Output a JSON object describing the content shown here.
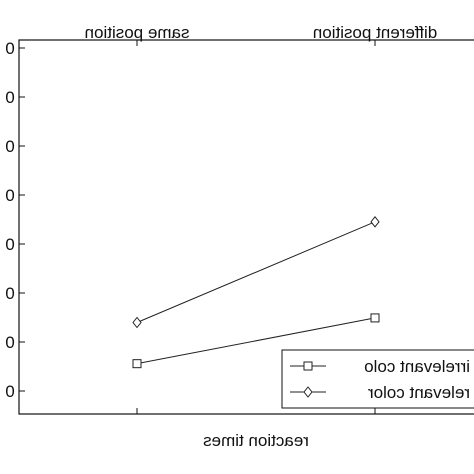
{
  "chart_data": {
    "type": "line",
    "mirrored": true,
    "categories": [
      "same position",
      "different position"
    ],
    "xlabel": "reaction times",
    "ylabel": "",
    "y_tick_labels": [
      "0",
      "0",
      "0",
      "0",
      "0",
      "0",
      "0",
      "0"
    ],
    "ylim": [
      0,
      8
    ],
    "grid": false,
    "legend_placement": "bottom-left",
    "series": [
      {
        "name": "irrelevant colo",
        "marker": "square",
        "values": [
          1.1,
          2.1
        ]
      },
      {
        "name": "relevant color",
        "marker": "diamond",
        "values": [
          2.0,
          4.2
        ]
      }
    ],
    "colors": {
      "line": "#222222",
      "axes": "#111111",
      "background": "#ffffff"
    }
  }
}
